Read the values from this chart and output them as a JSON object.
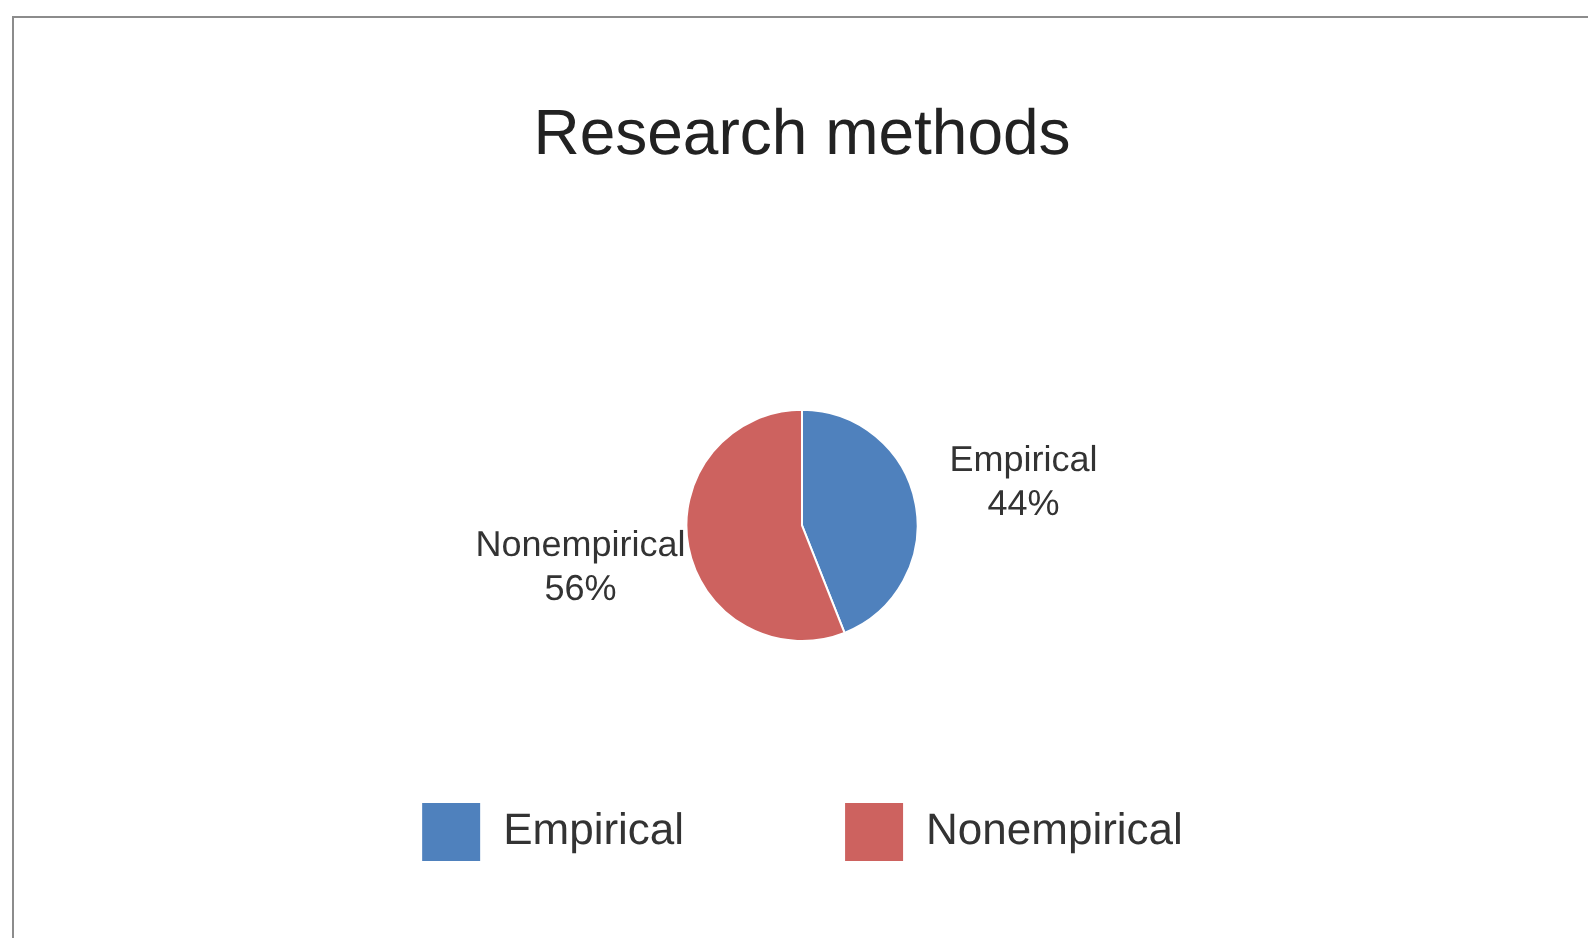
{
  "chart_data": {
    "type": "pie",
    "title": "Research methods",
    "categories": [
      "Empirical",
      "Nonempirical"
    ],
    "values": [
      44,
      56
    ],
    "value_labels": [
      "44%",
      "56%"
    ],
    "colors": [
      "#4f81bd",
      "#cd625f"
    ],
    "legend": "bottom"
  }
}
